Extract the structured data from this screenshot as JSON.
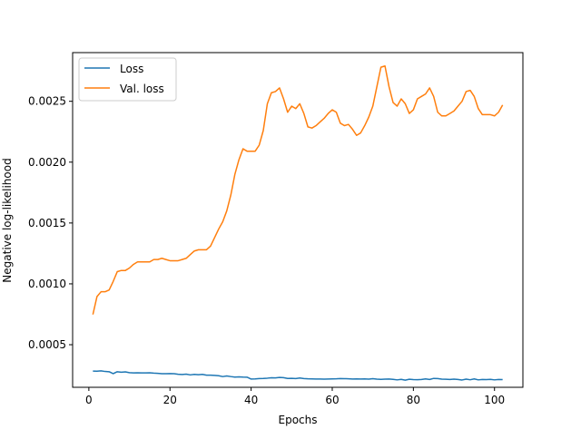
{
  "chart_data": {
    "type": "line",
    "title": "",
    "xlabel": "Epochs",
    "ylabel": "Negative log-likelihood",
    "xlim": [
      -4,
      107
    ],
    "ylim": [
      0.00015,
      0.0029
    ],
    "xticks": [
      {
        "value": 0,
        "label": "0"
      },
      {
        "value": 20,
        "label": "20"
      },
      {
        "value": 40,
        "label": "40"
      },
      {
        "value": 60,
        "label": "60"
      },
      {
        "value": 80,
        "label": "80"
      },
      {
        "value": 100,
        "label": "100"
      }
    ],
    "yticks": [
      {
        "value": 0.0005,
        "label": "0.0005"
      },
      {
        "value": 0.001,
        "label": "0.0010"
      },
      {
        "value": 0.0015,
        "label": "0.0015"
      },
      {
        "value": 0.002,
        "label": "0.0020"
      },
      {
        "value": 0.0025,
        "label": "0.0025"
      }
    ],
    "grid": false,
    "legend_position": "top-left",
    "x": [
      1,
      2,
      3,
      4,
      5,
      6,
      7,
      8,
      9,
      10,
      11,
      12,
      13,
      14,
      15,
      16,
      17,
      18,
      19,
      20,
      21,
      22,
      23,
      24,
      25,
      26,
      27,
      28,
      29,
      30,
      31,
      32,
      33,
      34,
      35,
      36,
      37,
      38,
      39,
      40,
      41,
      42,
      43,
      44,
      45,
      46,
      47,
      48,
      49,
      50,
      51,
      52,
      53,
      54,
      55,
      56,
      57,
      58,
      59,
      60,
      61,
      62,
      63,
      64,
      65,
      66,
      67,
      68,
      69,
      70,
      71,
      72,
      73,
      74,
      75,
      76,
      77,
      78,
      79,
      80,
      81,
      82,
      83,
      84,
      85,
      86,
      87,
      88,
      89,
      90,
      91,
      92,
      93,
      94,
      95,
      96,
      97,
      98,
      99,
      100,
      101,
      102
    ],
    "series": [
      {
        "name": "Loss",
        "color": "#1f77b4",
        "values": [
          0.000283,
          0.000282,
          0.000285,
          0.00028,
          0.000278,
          0.000262,
          0.000278,
          0.000274,
          0.000277,
          0.00027,
          0.000268,
          0.000269,
          0.000268,
          0.000268,
          0.000269,
          0.000266,
          0.000265,
          0.000262,
          0.000262,
          0.000263,
          0.000262,
          0.000257,
          0.000255,
          0.000258,
          0.000252,
          0.000256,
          0.000253,
          0.000256,
          0.00025,
          0.00025,
          0.000248,
          0.000245,
          0.000238,
          0.000243,
          0.000238,
          0.000234,
          0.000236,
          0.000234,
          0.000233,
          0.000218,
          0.000219,
          0.000222,
          0.000223,
          0.000225,
          0.000228,
          0.000227,
          0.000231,
          0.000229,
          0.000223,
          0.000224,
          0.000222,
          0.000226,
          0.000222,
          0.00022,
          0.000219,
          0.000218,
          0.000218,
          0.000217,
          0.000218,
          0.000219,
          0.00022,
          0.000222,
          0.000221,
          0.00022,
          0.000218,
          0.000219,
          0.000218,
          0.000219,
          0.000217,
          0.000221,
          0.000217,
          0.000215,
          0.000217,
          0.000218,
          0.000215,
          0.000211,
          0.000215,
          0.000209,
          0.000216,
          0.000213,
          0.000212,
          0.000214,
          0.000219,
          0.000214,
          0.000223,
          0.000222,
          0.000217,
          0.000216,
          0.000214,
          0.000217,
          0.000214,
          0.00021,
          0.000217,
          0.000212,
          0.000219,
          0.000211,
          0.000214,
          0.000213,
          0.000215,
          0.000211,
          0.000214,
          0.000213
        ]
      },
      {
        "name": "Val. loss",
        "color": "#ff7f0e",
        "values": [
          0.000748,
          0.000895,
          0.000935,
          0.000935,
          0.00095,
          0.00102,
          0.0011,
          0.00111,
          0.00111,
          0.00113,
          0.00116,
          0.00118,
          0.00118,
          0.00118,
          0.00118,
          0.0012,
          0.0012,
          0.00121,
          0.0012,
          0.00119,
          0.00119,
          0.00119,
          0.0012,
          0.00121,
          0.00124,
          0.00127,
          0.00128,
          0.00128,
          0.00128,
          0.00131,
          0.00138,
          0.00145,
          0.00151,
          0.0016,
          0.00173,
          0.0019,
          0.00202,
          0.00211,
          0.00209,
          0.00209,
          0.00209,
          0.00214,
          0.00226,
          0.00248,
          0.00257,
          0.00258,
          0.00261,
          0.00252,
          0.00241,
          0.00246,
          0.00244,
          0.00248,
          0.0024,
          0.00229,
          0.00228,
          0.0023,
          0.00233,
          0.00236,
          0.0024,
          0.00243,
          0.00241,
          0.00232,
          0.0023,
          0.00231,
          0.00227,
          0.00222,
          0.00224,
          0.0023,
          0.00237,
          0.00246,
          0.00262,
          0.00278,
          0.00279,
          0.00262,
          0.00249,
          0.00246,
          0.00252,
          0.00248,
          0.0024,
          0.00243,
          0.00252,
          0.00254,
          0.00256,
          0.00261,
          0.00254,
          0.00241,
          0.00238,
          0.00238,
          0.0024,
          0.00242,
          0.00246,
          0.0025,
          0.00258,
          0.00259,
          0.00254,
          0.00244,
          0.00239,
          0.00239,
          0.00239,
          0.00238,
          0.00241,
          0.00247
        ]
      }
    ]
  }
}
